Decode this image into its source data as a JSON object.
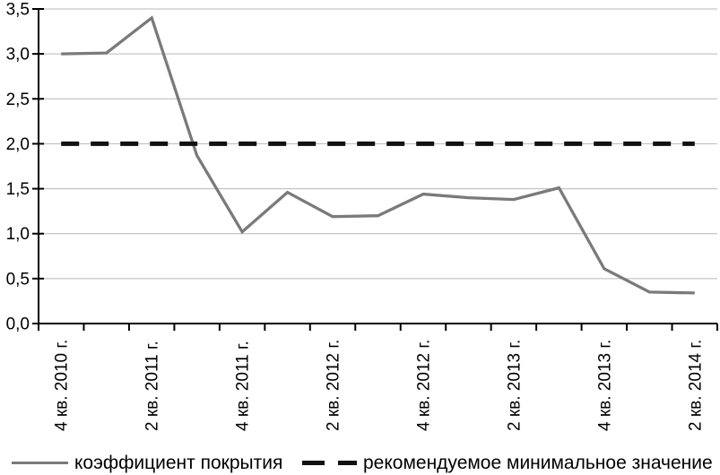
{
  "chart_data": {
    "type": "line",
    "title": "",
    "xlabel": "",
    "ylabel": "",
    "ylim": [
      0,
      3.5
    ],
    "grid": true,
    "legend_position": "bottom",
    "y_tick_labels": [
      "0,0",
      "0,5",
      "1,0",
      "1,5",
      "2,0",
      "2,5",
      "3,0",
      "3,5"
    ],
    "x_tick_labels": [
      "4 кв. 2010 г.",
      "2 кв. 2011 г.",
      "4 кв. 2011 г.",
      "2 кв. 2012 г.",
      "4 кв. 2012 г.",
      "2 кв. 2013 г.",
      "4 кв. 2013 г.",
      "2 кв. 2014 г."
    ],
    "label_every": 2,
    "series": [
      {
        "name": "коэффициент покрытия",
        "style": "solid",
        "color": "#7a7a7a",
        "values": [
          3.0,
          3.01,
          3.4,
          1.87,
          1.02,
          1.46,
          1.19,
          1.2,
          1.44,
          1.4,
          1.38,
          1.51,
          0.61,
          0.35,
          0.34
        ]
      },
      {
        "name": "рекомендуемое минимальное значение",
        "style": "dashed",
        "color": "#111111",
        "values": [
          2.0,
          2.0,
          2.0,
          2.0,
          2.0,
          2.0,
          2.0,
          2.0,
          2.0,
          2.0,
          2.0,
          2.0,
          2.0,
          2.0,
          2.0
        ]
      }
    ]
  },
  "colors": {
    "background": "#ffffff",
    "gridline": "#b7b7b7",
    "axis": "#000000",
    "tick_text": "#000000"
  }
}
